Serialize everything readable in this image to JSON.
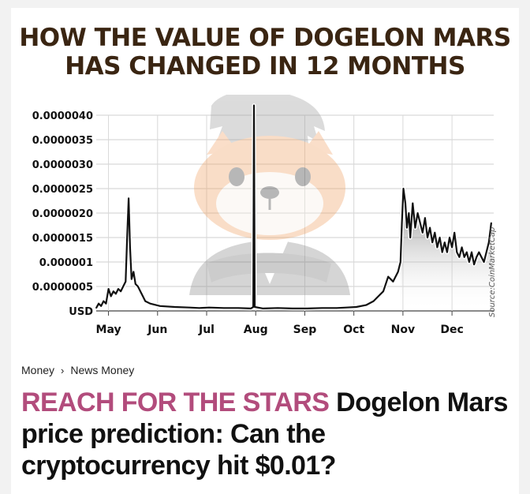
{
  "page": {
    "source": "Source:CoinMarketCap",
    "breadcrumb": {
      "items": [
        "Money",
        "News Money"
      ],
      "separator": "›"
    },
    "headline": {
      "kicker": "REACH FOR THE STARS",
      "text": " Dogelon Mars price prediction: Can the cryptocurrency hit $0.01?"
    },
    "colors": {
      "kicker": "#b24c7c",
      "title": "#3a2512",
      "line": "#111111"
    },
    "mascot_icon": "dogelon-mascot-illustration"
  },
  "chart_data": {
    "type": "line",
    "title_lines": [
      "HOW THE VALUE OF DOGELON MARS",
      "HAS CHANGED IN 12 MONTHS"
    ],
    "ylabel": "USD",
    "yticks": [
      {
        "v": 0.0,
        "label": "USD"
      },
      {
        "v": 5e-07,
        "label": "0.0000005"
      },
      {
        "v": 1e-06,
        "label": "0.000001"
      },
      {
        "v": 1.5e-06,
        "label": "0.0000015"
      },
      {
        "v": 2e-06,
        "label": "0.0000020"
      },
      {
        "v": 2.5e-06,
        "label": "0.0000025"
      },
      {
        "v": 3e-06,
        "label": "0.0000030"
      },
      {
        "v": 3.5e-06,
        "label": "0.0000035"
      },
      {
        "v": 4e-06,
        "label": "0.0000040"
      }
    ],
    "ylim": [
      0,
      4e-06
    ],
    "xlim": [
      0,
      8.1
    ],
    "xticks": [
      {
        "x": 0.25,
        "label": "May"
      },
      {
        "x": 1.25,
        "label": "Jun"
      },
      {
        "x": 2.25,
        "label": "Jul"
      },
      {
        "x": 3.25,
        "label": "Aug"
      },
      {
        "x": 4.25,
        "label": "Sep"
      },
      {
        "x": 5.25,
        "label": "Oct"
      },
      {
        "x": 6.25,
        "label": "Nov"
      },
      {
        "x": 7.25,
        "label": "Dec"
      }
    ],
    "grid": true,
    "series": [
      {
        "points": [
          [
            0.0,
            6e-08
          ],
          [
            0.05,
            1.5e-07
          ],
          [
            0.1,
            1e-07
          ],
          [
            0.15,
            2e-07
          ],
          [
            0.2,
            1.5e-07
          ],
          [
            0.25,
            4.5e-07
          ],
          [
            0.3,
            3e-07
          ],
          [
            0.35,
            4e-07
          ],
          [
            0.4,
            3.5e-07
          ],
          [
            0.45,
            4.5e-07
          ],
          [
            0.5,
            4e-07
          ],
          [
            0.55,
            5e-07
          ],
          [
            0.6,
            6e-07
          ],
          [
            0.63,
            1.5e-06
          ],
          [
            0.66,
            2.3e-06
          ],
          [
            0.69,
            1.3e-06
          ],
          [
            0.72,
            6.5e-07
          ],
          [
            0.76,
            8e-07
          ],
          [
            0.8,
            5.5e-07
          ],
          [
            0.85,
            5e-07
          ],
          [
            0.9,
            4e-07
          ],
          [
            0.95,
            3e-07
          ],
          [
            1.0,
            2e-07
          ],
          [
            1.1,
            1.5e-07
          ],
          [
            1.3,
            1e-07
          ],
          [
            1.6,
            8e-08
          ],
          [
            1.9,
            7e-08
          ],
          [
            2.1,
            6e-08
          ],
          [
            2.3,
            7e-08
          ],
          [
            2.6,
            6e-08
          ],
          [
            2.9,
            6e-08
          ],
          [
            3.15,
            5e-08
          ],
          [
            3.2,
            8e-08
          ],
          [
            3.215,
            4.2e-06
          ],
          [
            3.23,
            8e-08
          ],
          [
            3.4,
            5e-08
          ],
          [
            3.7,
            6e-08
          ],
          [
            4.0,
            5e-08
          ],
          [
            4.3,
            5e-08
          ],
          [
            4.6,
            6e-08
          ],
          [
            4.9,
            6e-08
          ],
          [
            5.1,
            7e-08
          ],
          [
            5.3,
            8e-08
          ],
          [
            5.5,
            1.2e-07
          ],
          [
            5.65,
            2e-07
          ],
          [
            5.75,
            3e-07
          ],
          [
            5.85,
            4e-07
          ],
          [
            5.95,
            7e-07
          ],
          [
            6.05,
            6e-07
          ],
          [
            6.15,
            8e-07
          ],
          [
            6.2,
            1e-06
          ],
          [
            6.23,
            1.8e-06
          ],
          [
            6.26,
            2.5e-06
          ],
          [
            6.3,
            2.2e-06
          ],
          [
            6.33,
            1.7e-06
          ],
          [
            6.37,
            2e-06
          ],
          [
            6.4,
            1.5e-06
          ],
          [
            6.45,
            2.2e-06
          ],
          [
            6.5,
            1.7e-06
          ],
          [
            6.55,
            2e-06
          ],
          [
            6.6,
            1.8e-06
          ],
          [
            6.65,
            1.6e-06
          ],
          [
            6.7,
            1.9e-06
          ],
          [
            6.75,
            1.5e-06
          ],
          [
            6.8,
            1.7e-06
          ],
          [
            6.85,
            1.4e-06
          ],
          [
            6.9,
            1.6e-06
          ],
          [
            6.95,
            1.3e-06
          ],
          [
            7.0,
            1.5e-06
          ],
          [
            7.05,
            1.2e-06
          ],
          [
            7.1,
            1.4e-06
          ],
          [
            7.15,
            1.2e-06
          ],
          [
            7.2,
            1.5e-06
          ],
          [
            7.25,
            1.3e-06
          ],
          [
            7.3,
            1.6e-06
          ],
          [
            7.35,
            1.2e-06
          ],
          [
            7.4,
            1.1e-06
          ],
          [
            7.45,
            1.3e-06
          ],
          [
            7.5,
            1.1e-06
          ],
          [
            7.55,
            1.2e-06
          ],
          [
            7.6,
            1e-06
          ],
          [
            7.65,
            1.2e-06
          ],
          [
            7.7,
            9.5e-07
          ],
          [
            7.75,
            1.1e-06
          ],
          [
            7.8,
            1.2e-06
          ],
          [
            7.85,
            1.1e-06
          ],
          [
            7.9,
            1e-06
          ],
          [
            7.95,
            1.2e-06
          ],
          [
            8.0,
            1.4e-06
          ],
          [
            8.05,
            1.8e-06
          ]
        ]
      }
    ]
  }
}
